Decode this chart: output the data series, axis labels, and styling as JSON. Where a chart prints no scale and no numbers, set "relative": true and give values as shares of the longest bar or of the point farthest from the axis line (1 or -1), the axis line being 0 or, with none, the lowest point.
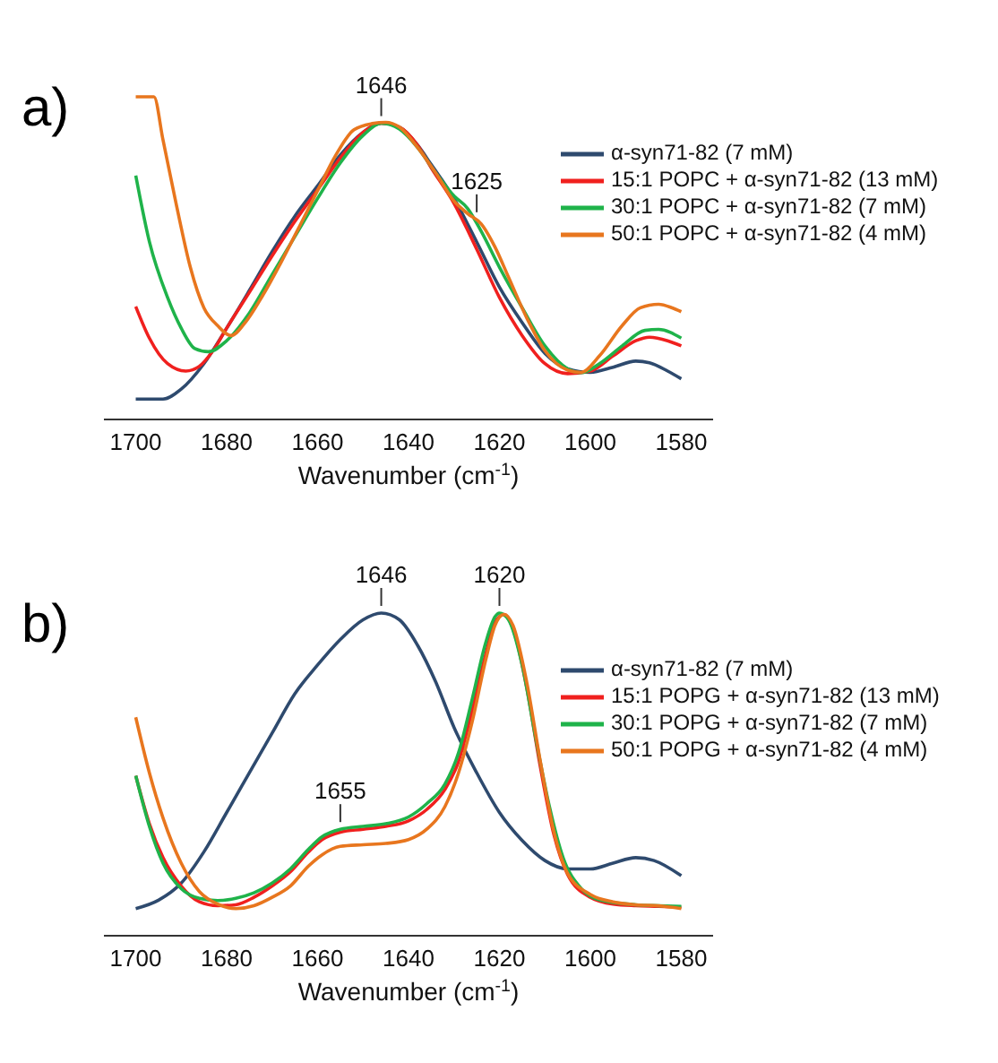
{
  "chart_data": [
    {
      "type": "line",
      "title": "a)",
      "xlabel": "Wavenumber (cm$^{-1}$)",
      "relative": true,
      "xlim": [
        1707,
        1573
      ],
      "xticks": [
        1700,
        1680,
        1660,
        1640,
        1620,
        1600,
        1580
      ],
      "legend": "right",
      "grid": false,
      "marker": "none",
      "line_style": "solid",
      "annotations": [
        {
          "text": "1646",
          "x": 1646,
          "y": 0.918
        },
        {
          "text": "1625",
          "x": 1625,
          "y": 0.62
        }
      ],
      "series": [
        {
          "name": "α-syn71-82 (7 mM)",
          "color": "#2e4a6e",
          "x": [
            1700,
            1694,
            1690,
            1685,
            1680,
            1675,
            1670,
            1665,
            1660,
            1655,
            1650,
            1646,
            1642,
            1638,
            1635,
            1630,
            1625,
            1620,
            1615,
            1610,
            1605,
            1600,
            1595,
            1590,
            1587,
            1583,
            1580
          ],
          "values": [
            0.063,
            0.063,
            0.094,
            0.173,
            0.283,
            0.4,
            0.52,
            0.63,
            0.724,
            0.82,
            0.89,
            0.918,
            0.906,
            0.85,
            0.79,
            0.685,
            0.55,
            0.41,
            0.3,
            0.205,
            0.157,
            0.146,
            0.162,
            0.181,
            0.176,
            0.15,
            0.126
          ]
        },
        {
          "name": "15:1 POPC + α-syn71-82 (13 mM)",
          "color": "#f0201e",
          "x": [
            1700,
            1697,
            1693,
            1689,
            1686,
            1683,
            1680,
            1675,
            1670,
            1665,
            1660,
            1655,
            1650,
            1646,
            1642,
            1638,
            1635,
            1630,
            1625,
            1620,
            1615,
            1610,
            1605,
            1600,
            1595,
            1590,
            1587,
            1583,
            1580
          ],
          "values": [
            0.35,
            0.252,
            0.173,
            0.15,
            0.165,
            0.213,
            0.283,
            0.394,
            0.507,
            0.614,
            0.712,
            0.81,
            0.89,
            0.918,
            0.906,
            0.85,
            0.78,
            0.67,
            0.528,
            0.378,
            0.26,
            0.173,
            0.142,
            0.15,
            0.197,
            0.244,
            0.255,
            0.244,
            0.228
          ]
        },
        {
          "name": "30:1 POPC + α-syn71-82 (7 mM)",
          "color": "#1fb34a",
          "x": [
            1700,
            1697,
            1693,
            1690,
            1687,
            1684,
            1680,
            1675,
            1670,
            1665,
            1660,
            1655,
            1650,
            1646,
            1642,
            1638,
            1634,
            1630,
            1627,
            1624,
            1620,
            1615,
            1610,
            1605,
            1602,
            1598,
            1593,
            1588,
            1585,
            1580
          ],
          "values": [
            0.756,
            0.551,
            0.378,
            0.283,
            0.22,
            0.21,
            0.244,
            0.33,
            0.449,
            0.567,
            0.685,
            0.795,
            0.88,
            0.918,
            0.9,
            0.843,
            0.764,
            0.693,
            0.654,
            0.583,
            0.472,
            0.346,
            0.228,
            0.157,
            0.145,
            0.173,
            0.228,
            0.276,
            0.279,
            0.252
          ]
        },
        {
          "name": "50:1 POPC + α-syn71-82 (4 mM)",
          "color": "#e8761e",
          "x": [
            1700,
            1696,
            1694,
            1691,
            1688,
            1685,
            1682,
            1679,
            1676,
            1672,
            1668,
            1664,
            1660,
            1656,
            1652,
            1648,
            1645,
            1642,
            1638,
            1634,
            1630,
            1627,
            1624,
            1621,
            1618,
            1614,
            1610,
            1605,
            1602,
            1598,
            1593,
            1589,
            1585,
            1582,
            1580
          ],
          "values": [
            1,
            1,
            0.866,
            0.661,
            0.472,
            0.346,
            0.291,
            0.26,
            0.299,
            0.386,
            0.488,
            0.598,
            0.709,
            0.819,
            0.898,
            0.917,
            0.921,
            0.906,
            0.843,
            0.764,
            0.677,
            0.638,
            0.606,
            0.535,
            0.441,
            0.315,
            0.213,
            0.153,
            0.146,
            0.197,
            0.291,
            0.346,
            0.357,
            0.346,
            0.334
          ]
        }
      ]
    },
    {
      "type": "line",
      "title": "b)",
      "xlabel": "Wavenumber (cm$^{-1}$)",
      "relative": true,
      "xlim": [
        1707,
        1573
      ],
      "xticks": [
        1700,
        1680,
        1660,
        1640,
        1620,
        1600,
        1580
      ],
      "legend": "right",
      "grid": false,
      "marker": "none",
      "line_style": "solid",
      "annotations": [
        {
          "text": "1646",
          "x": 1646,
          "y": 1
        },
        {
          "text": "1620",
          "x": 1620,
          "y": 1
        },
        {
          "text": "1655",
          "x": 1655,
          "y": 0.33
        }
      ],
      "series": [
        {
          "name": "α-syn71-82 (7 mM)",
          "color": "#2e4a6e",
          "x": [
            1700,
            1695,
            1690,
            1685,
            1680,
            1675,
            1670,
            1665,
            1660,
            1655,
            1650,
            1646,
            1642,
            1638,
            1634,
            1630,
            1625,
            1620,
            1615,
            1610,
            1605,
            1600,
            1595,
            1590,
            1586,
            1580
          ],
          "values": [
            0.084,
            0.11,
            0.163,
            0.26,
            0.382,
            0.505,
            0.628,
            0.75,
            0.839,
            0.918,
            0.979,
            1,
            0.979,
            0.9,
            0.786,
            0.646,
            0.505,
            0.382,
            0.295,
            0.233,
            0.207,
            0.207,
            0.225,
            0.242,
            0.233,
            0.186
          ]
        },
        {
          "name": "15:1 POPG + α-syn71-82 (13 mM)",
          "color": "#f0201e",
          "x": [
            1700,
            1697,
            1694,
            1690,
            1686,
            1682,
            1678,
            1674,
            1670,
            1666,
            1662,
            1659,
            1655,
            1650,
            1645,
            1640,
            1636,
            1632,
            1629,
            1626,
            1623,
            1621,
            1619,
            1617,
            1614,
            1611,
            1608,
            1605,
            1600,
            1595,
            1590,
            1585,
            1580
          ],
          "values": [
            0.496,
            0.347,
            0.242,
            0.154,
            0.105,
            0.093,
            0.096,
            0.119,
            0.154,
            0.198,
            0.26,
            0.298,
            0.321,
            0.33,
            0.339,
            0.356,
            0.391,
            0.453,
            0.54,
            0.698,
            0.874,
            0.97,
            0.996,
            0.953,
            0.768,
            0.523,
            0.312,
            0.19,
            0.119,
            0.098,
            0.093,
            0.091,
            0.088
          ]
        },
        {
          "name": "30:1 POPG + α-syn71-82 (7 mM)",
          "color": "#1fb34a",
          "x": [
            1700,
            1697,
            1694,
            1690,
            1686,
            1682,
            1678,
            1674,
            1670,
            1666,
            1662,
            1659,
            1655,
            1650,
            1645,
            1640,
            1636,
            1632,
            1629,
            1626,
            1623,
            1621,
            1620,
            1618,
            1615,
            1612,
            1609,
            1606,
            1602,
            1598,
            1590,
            1585,
            1580
          ],
          "values": [
            0.496,
            0.339,
            0.225,
            0.146,
            0.116,
            0.109,
            0.116,
            0.133,
            0.163,
            0.207,
            0.268,
            0.307,
            0.33,
            0.339,
            0.347,
            0.368,
            0.409,
            0.47,
            0.567,
            0.733,
            0.909,
            0.988,
            1,
            0.979,
            0.839,
            0.611,
            0.4,
            0.242,
            0.146,
            0.111,
            0.096,
            0.093,
            0.091
          ]
        },
        {
          "name": "50:1 POPG + α-syn71-82 (4 mM)",
          "color": "#e8761e",
          "x": [
            1700,
            1697,
            1694,
            1690,
            1686,
            1682,
            1678,
            1674,
            1670,
            1666,
            1662,
            1659,
            1655,
            1650,
            1645,
            1640,
            1636,
            1632,
            1629,
            1626,
            1623,
            1621,
            1619,
            1617,
            1614,
            1611,
            1608,
            1605,
            1600,
            1595,
            1590,
            1585,
            1580
          ],
          "values": [
            0.677,
            0.505,
            0.365,
            0.225,
            0.137,
            0.098,
            0.084,
            0.093,
            0.119,
            0.154,
            0.216,
            0.251,
            0.277,
            0.282,
            0.286,
            0.298,
            0.33,
            0.4,
            0.505,
            0.663,
            0.856,
            0.961,
            0.996,
            0.961,
            0.786,
            0.54,
            0.321,
            0.193,
            0.128,
            0.105,
            0.096,
            0.093,
            0.084
          ]
        }
      ]
    }
  ]
}
